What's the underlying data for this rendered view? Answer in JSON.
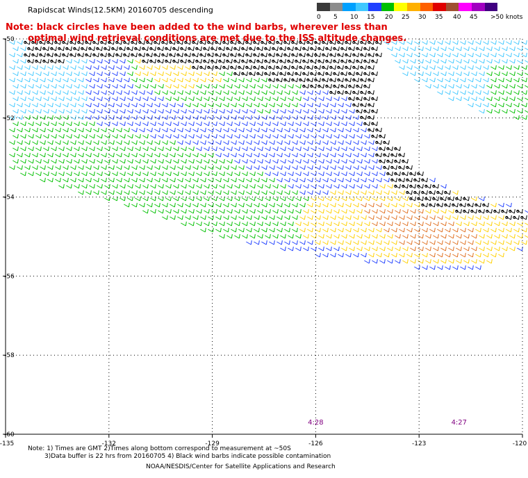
{
  "title": "Rapidscat Winds(12.5KM) 20160705 descending",
  "note": {
    "line1": "Note: black circles have been added to the wind barbs, wherever less than",
    "line2": "optimal wind retrieval conditions are met due to the ISS altitude changes."
  },
  "legend": {
    "unit": "knots",
    "labels": [
      "0",
      "5",
      "10",
      "15",
      "20",
      "25",
      "30",
      "35",
      "40",
      "45",
      ">50 knots"
    ],
    "colors": [
      "#3a3a3a",
      "#8c8c8c",
      "#00a0ff",
      "#40c8ff",
      "#2040ff",
      "#00c000",
      "#ffff00",
      "#ffb000",
      "#ff6000",
      "#e00000",
      "#a05030",
      "#ff00ff",
      "#a000c0",
      "#400080"
    ]
  },
  "map": {
    "lon_range": [
      -135,
      -120
    ],
    "lat_range": [
      -60,
      -50
    ],
    "lon_ticks": [
      "-135",
      "-132",
      "-129",
      "-126",
      "-123",
      "-120"
    ],
    "lat_ticks": [
      "-50",
      "-52",
      "-54",
      "-56",
      "-58",
      "-60"
    ],
    "time_labels": [
      "4:28",
      "4:27"
    ],
    "time_color": "#800080",
    "regions": [
      {
        "name": "upper-blue",
        "color": "#2040ff"
      },
      {
        "name": "green-band",
        "color": "#00c000"
      },
      {
        "name": "yellow-core",
        "color": "#ffd000"
      },
      {
        "name": "orange-core",
        "color": "#e07020"
      },
      {
        "name": "cyan-north",
        "color": "#40c8ff"
      },
      {
        "name": "contaminated",
        "color": "#000000"
      }
    ]
  },
  "footer": {
    "note_line1": "Note: 1) Times are GMT 2)Times along bottom correspond to measurement at ~50S",
    "note_line2": "3)Data buffer is 22 hrs from 20160705 4) Black wind barbs indicate possible contamination",
    "credit": "NOAA/NESDIS/Center for Satellite Applications and Research"
  }
}
